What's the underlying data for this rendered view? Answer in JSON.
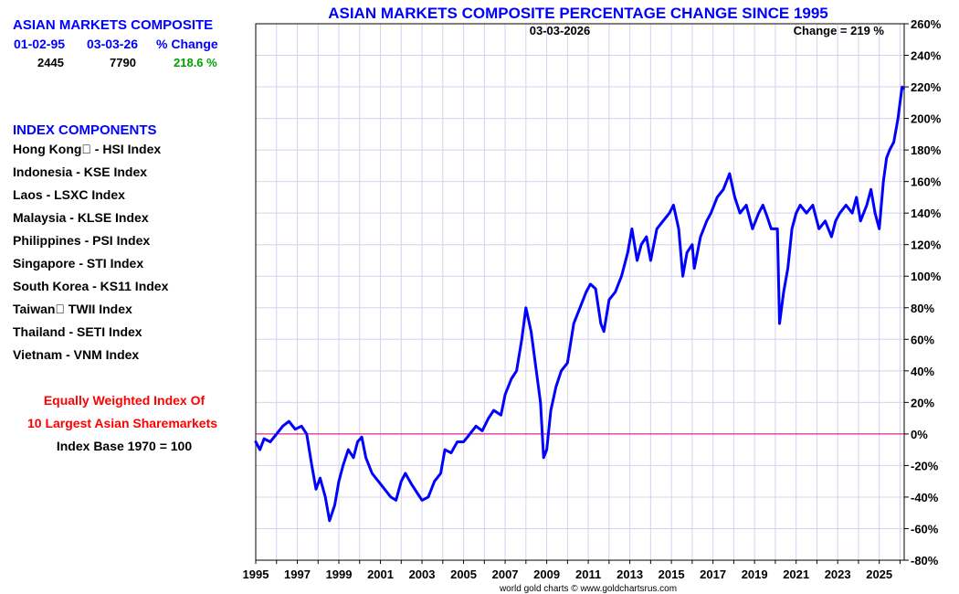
{
  "left_panel": {
    "composite_title": "ASIAN MARKETS COMPOSITE",
    "col_start": "01-02-95",
    "col_end": "03-03-26",
    "col_change": "% Change",
    "val_start": "2445",
    "val_end": "7790",
    "val_change": "218.6 %",
    "components_title": "INDEX COMPONENTS",
    "components": [
      "Hong Kong\u0000 - HSI Index",
      "Indonesia - KSE Index",
      "Laos - LSXC Index",
      "Malaysia - KLSE Index",
      "Philippines - PSI Index",
      "Singapore - STI Index",
      "South Korea - KS11 Index",
      "Taiwan\u0000 TWII Index",
      "Thailand - SETI Index",
      "Vietnam - VNM Index"
    ],
    "note_line1": "Equally Weighted Index Of",
    "note_line2": "10 Largest Asian Sharemarkets",
    "note_line3": "Index Base 1970 = 100"
  },
  "colors": {
    "series": "#0000ff",
    "zero_line": "#cc0077",
    "grid": "#d8d0ee",
    "accent_blue": "#0000ff",
    "accent_green": "#00a000",
    "accent_red": "#ff0000"
  },
  "chart_data": {
    "type": "line",
    "title": "ASIAN MARKETS COMPOSITE PERCENTAGE CHANGE SINCE 1995",
    "date_label": "03-03-2026",
    "change_label": "Change = 219 %",
    "footer": "world gold charts © www.goldchartsrus.com",
    "xlabel": "",
    "ylabel": "",
    "xlim": [
      1995,
      2026.2
    ],
    "ylim": [
      -80,
      260
    ],
    "ytick_values": [
      -80,
      -60,
      -40,
      -20,
      0,
      20,
      40,
      60,
      80,
      100,
      120,
      140,
      160,
      180,
      200,
      220,
      240,
      260
    ],
    "ytick_labels": [
      "-80%",
      "-60%",
      "-40%",
      "-20%",
      "0%",
      "20%",
      "40%",
      "60%",
      "80%",
      "100%",
      "120%",
      "140%",
      "160%",
      "180%",
      "200%",
      "220%",
      "240%",
      "260%"
    ],
    "xtick_labels": [
      "1995",
      "1997",
      "1999",
      "2001",
      "2003",
      "2005",
      "2007",
      "2009",
      "2011",
      "2013",
      "2015",
      "2017",
      "2019",
      "2021",
      "2023",
      "2025"
    ],
    "reference_line": 0,
    "series": [
      {
        "name": "Asian Markets Composite % Change",
        "x": [
          1995.0,
          1995.2,
          1995.4,
          1995.7,
          1996.0,
          1996.3,
          1996.6,
          1996.9,
          1997.2,
          1997.45,
          1997.7,
          1997.9,
          1998.1,
          1998.35,
          1998.55,
          1998.8,
          1999.0,
          1999.2,
          1999.45,
          1999.7,
          1999.9,
          2000.1,
          2000.3,
          2000.6,
          2000.9,
          2001.2,
          2001.5,
          2001.75,
          2002.0,
          2002.2,
          2002.5,
          2002.8,
          2003.0,
          2003.3,
          2003.6,
          2003.9,
          2004.1,
          2004.4,
          2004.7,
          2005.0,
          2005.3,
          2005.6,
          2005.9,
          2006.2,
          2006.45,
          2006.8,
          2007.0,
          2007.3,
          2007.55,
          2007.8,
          2008.0,
          2008.25,
          2008.5,
          2008.7,
          2008.85,
          2009.0,
          2009.2,
          2009.45,
          2009.7,
          2010.0,
          2010.3,
          2010.6,
          2010.9,
          2011.1,
          2011.35,
          2011.6,
          2011.75,
          2012.0,
          2012.3,
          2012.6,
          2012.9,
          2013.1,
          2013.35,
          2013.55,
          2013.8,
          2014.0,
          2014.3,
          2014.6,
          2014.9,
          2015.1,
          2015.35,
          2015.55,
          2015.75,
          2016.0,
          2016.1,
          2016.4,
          2016.7,
          2016.9,
          2017.2,
          2017.5,
          2017.8,
          2018.05,
          2018.3,
          2018.6,
          2018.9,
          2019.2,
          2019.4,
          2019.6,
          2019.8,
          2020.1,
          2020.2,
          2020.4,
          2020.6,
          2020.8,
          2021.0,
          2021.2,
          2021.5,
          2021.8,
          2022.1,
          2022.4,
          2022.7,
          2022.9,
          2023.1,
          2023.4,
          2023.7,
          2023.9,
          2024.1,
          2024.4,
          2024.6,
          2024.8,
          2025.0,
          2025.2,
          2025.35,
          2025.5,
          2025.7,
          2025.9,
          2026.0,
          2026.1,
          2026.17
        ],
        "values": [
          -5,
          -10,
          -3,
          -5,
          0,
          5,
          8,
          3,
          5,
          0,
          -20,
          -35,
          -28,
          -40,
          -55,
          -45,
          -30,
          -20,
          -10,
          -15,
          -5,
          -2,
          -15,
          -25,
          -30,
          -35,
          -40,
          -42,
          -30,
          -25,
          -32,
          -38,
          -42,
          -40,
          -30,
          -25,
          -10,
          -12,
          -5,
          -5,
          0,
          5,
          2,
          10,
          15,
          12,
          25,
          35,
          40,
          60,
          80,
          65,
          40,
          20,
          -15,
          -10,
          15,
          30,
          40,
          45,
          70,
          80,
          90,
          95,
          92,
          70,
          65,
          85,
          90,
          100,
          115,
          130,
          110,
          120,
          125,
          110,
          130,
          135,
          140,
          145,
          130,
          100,
          115,
          120,
          105,
          125,
          135,
          140,
          150,
          155,
          165,
          150,
          140,
          145,
          130,
          140,
          145,
          138,
          130,
          130,
          70,
          90,
          105,
          130,
          140,
          145,
          140,
          145,
          130,
          135,
          125,
          135,
          140,
          145,
          140,
          150,
          135,
          145,
          155,
          140,
          130,
          160,
          175,
          180,
          185,
          200,
          210,
          220,
          219
        ]
      }
    ]
  }
}
